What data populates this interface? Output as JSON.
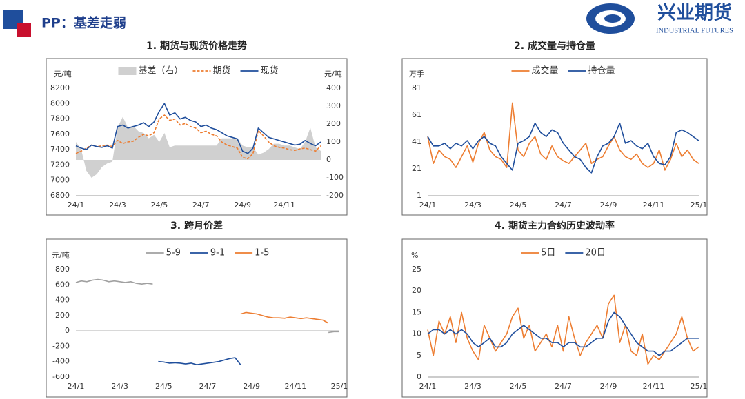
{
  "header": {
    "title": "PP：基差走弱",
    "logo_name": "兴业期货",
    "logo_subtitle": "INDUSTRIAL FUTURES"
  },
  "chart_data": [
    {
      "type": "line",
      "title": "1. 期货与现货价格走势",
      "y_label": "元/吨",
      "y2_label": "元/吨",
      "legend": "top",
      "grid": false,
      "categories": [
        "24/1",
        null,
        null,
        null,
        null,
        null,
        null,
        null,
        "24/3",
        null,
        null,
        null,
        null,
        null,
        null,
        null,
        "24/5",
        null,
        null,
        null,
        null,
        null,
        null,
        null,
        "24/7",
        null,
        null,
        null,
        null,
        null,
        null,
        null,
        "24/9",
        null,
        null,
        null,
        null,
        null,
        null,
        null,
        "24/11",
        null,
        null,
        null,
        null,
        null,
        null,
        null
      ],
      "ylim": [
        6800,
        8200
      ],
      "yticks": [
        6800,
        7000,
        7200,
        7400,
        7600,
        7800,
        8000,
        8200
      ],
      "y2lim": [
        -200,
        400
      ],
      "y2ticks": [
        -200,
        -100,
        0,
        100,
        200,
        300,
        400
      ],
      "series": [
        {
          "name": "基差（右）",
          "kind": "area",
          "axis": "y2",
          "color": "#d0d0d0",
          "values": [
            100,
            60,
            -60,
            -100,
            -80,
            -40,
            -20,
            -10,
            180,
            240,
            180,
            190,
            160,
            150,
            120,
            140,
            100,
            150,
            70,
            80,
            80,
            80,
            80,
            80,
            80,
            80,
            80,
            80,
            120,
            120,
            120,
            120,
            80,
            70,
            70,
            30,
            40,
            60,
            90,
            90,
            80,
            80,
            70,
            60,
            100,
            180,
            70,
            50
          ]
        },
        {
          "name": "期货",
          "kind": "line",
          "dashed": true,
          "color": "#ed7d31",
          "values": [
            7350,
            7380,
            7420,
            7460,
            7440,
            7450,
            7460,
            7440,
            7520,
            7480,
            7500,
            7510,
            7560,
            7600,
            7580,
            7620,
            7800,
            7850,
            7780,
            7800,
            7720,
            7740,
            7700,
            7680,
            7620,
            7640,
            7600,
            7580,
            7500,
            7460,
            7440,
            7420,
            7300,
            7280,
            7350,
            7650,
            7580,
            7500,
            7450,
            7430,
            7420,
            7400,
            7390,
            7410,
            7420,
            7400,
            7380,
            7450
          ]
        },
        {
          "name": "现货",
          "kind": "line",
          "color": "#1f4e9c",
          "values": [
            7450,
            7420,
            7400,
            7460,
            7440,
            7430,
            7450,
            7420,
            7700,
            7720,
            7680,
            7700,
            7720,
            7750,
            7700,
            7760,
            7900,
            8000,
            7850,
            7880,
            7800,
            7820,
            7780,
            7760,
            7700,
            7720,
            7680,
            7660,
            7620,
            7580,
            7560,
            7540,
            7380,
            7350,
            7420,
            7680,
            7620,
            7560,
            7540,
            7520,
            7500,
            7480,
            7460,
            7470,
            7520,
            7480,
            7450,
            7500
          ]
        }
      ]
    },
    {
      "type": "line",
      "title": "2. 成交量与持仓量",
      "y_label": "万手",
      "legend": "top",
      "grid": false,
      "categories": [
        "24/1",
        null,
        null,
        null,
        null,
        null,
        null,
        null,
        "24/3",
        null,
        null,
        null,
        null,
        null,
        null,
        null,
        "24/5",
        null,
        null,
        null,
        null,
        null,
        null,
        null,
        "24/7",
        null,
        null,
        null,
        null,
        null,
        null,
        null,
        "24/9",
        null,
        null,
        null,
        null,
        null,
        null,
        null,
        "24/11",
        null,
        null,
        null,
        null,
        null,
        null,
        null,
        "25/1"
      ],
      "ylim": [
        1,
        81
      ],
      "yticks": [
        1,
        21,
        41,
        61,
        81
      ],
      "series": [
        {
          "name": "成交量",
          "kind": "line",
          "color": "#ed7d31",
          "values": [
            45,
            25,
            35,
            30,
            28,
            22,
            30,
            38,
            26,
            40,
            48,
            35,
            30,
            28,
            22,
            70,
            35,
            30,
            40,
            45,
            32,
            28,
            38,
            30,
            27,
            25,
            30,
            35,
            40,
            25,
            28,
            30,
            38,
            45,
            35,
            30,
            28,
            32,
            25,
            22,
            25,
            35,
            20,
            28,
            40,
            30,
            35,
            28,
            25
          ]
        },
        {
          "name": "持仓量",
          "kind": "line",
          "color": "#1f4e9c",
          "values": [
            45,
            38,
            38,
            40,
            36,
            40,
            38,
            42,
            36,
            42,
            45,
            40,
            38,
            30,
            25,
            20,
            40,
            42,
            45,
            55,
            48,
            45,
            50,
            48,
            40,
            35,
            30,
            28,
            22,
            18,
            30,
            38,
            40,
            45,
            55,
            40,
            42,
            38,
            36,
            40,
            30,
            25,
            24,
            30,
            48,
            50,
            48,
            45,
            42
          ]
        }
      ]
    },
    {
      "type": "line",
      "title": "3. 跨月价差",
      "y_label": "元/吨",
      "legend": "top",
      "grid": false,
      "categories": [
        "24/1",
        null,
        null,
        null,
        null,
        null,
        null,
        null,
        "24/3",
        null,
        null,
        null,
        null,
        null,
        null,
        null,
        "24/5",
        null,
        null,
        null,
        null,
        null,
        null,
        null,
        "24/7",
        null,
        null,
        null,
        null,
        null,
        null,
        null,
        "24/9",
        null,
        null,
        null,
        null,
        null,
        null,
        null,
        "24/11",
        null,
        null,
        null,
        null,
        null,
        null,
        null,
        "25/1"
      ],
      "ylim": [
        -600,
        800
      ],
      "yticks": [
        -600,
        -400,
        -200,
        0,
        200,
        400,
        600,
        800
      ],
      "series": [
        {
          "name": "5-9",
          "kind": "line",
          "color": "#a0a0a0",
          "values": [
            630,
            650,
            640,
            660,
            670,
            660,
            640,
            650,
            640,
            630,
            640,
            620,
            610,
            620,
            610,
            null,
            null,
            null,
            null,
            null,
            null,
            null,
            null,
            null,
            null,
            null,
            null,
            null,
            null,
            null,
            null,
            null,
            null,
            null,
            null,
            null,
            null,
            null,
            null,
            null,
            null,
            null,
            null,
            null,
            null,
            null,
            -20,
            -10,
            -10
          ]
        },
        {
          "name": "9-1",
          "kind": "line",
          "color": "#1f4e9c",
          "values": [
            null,
            null,
            null,
            null,
            null,
            null,
            null,
            null,
            null,
            null,
            null,
            null,
            null,
            null,
            null,
            -400,
            -405,
            -420,
            -415,
            -420,
            -430,
            -420,
            -440,
            -430,
            -420,
            -410,
            -400,
            -380,
            -360,
            -350,
            -440,
            null,
            null,
            null,
            null,
            null,
            null,
            null,
            null,
            null,
            null,
            null,
            null,
            null,
            null,
            null,
            null,
            null,
            null
          ]
        },
        {
          "name": "1-5",
          "kind": "line",
          "color": "#ed7d31",
          "values": [
            null,
            null,
            null,
            null,
            null,
            null,
            null,
            null,
            null,
            null,
            null,
            null,
            null,
            null,
            null,
            null,
            null,
            null,
            null,
            null,
            null,
            null,
            null,
            null,
            null,
            null,
            null,
            null,
            null,
            null,
            220,
            240,
            230,
            220,
            200,
            180,
            170,
            170,
            165,
            180,
            170,
            160,
            170,
            160,
            150,
            140,
            100,
            null,
            null
          ]
        }
      ]
    },
    {
      "type": "line",
      "title": "4. 期货主力合约历史波动率",
      "y_label": "%",
      "legend": "top",
      "grid": false,
      "categories": [
        "24/1",
        null,
        null,
        null,
        null,
        null,
        null,
        null,
        "24/3",
        null,
        null,
        null,
        null,
        null,
        null,
        null,
        "24/5",
        null,
        null,
        null,
        null,
        null,
        null,
        null,
        "24/7",
        null,
        null,
        null,
        null,
        null,
        null,
        null,
        "24/9",
        null,
        null,
        null,
        null,
        null,
        null,
        null,
        "24/11",
        null,
        null,
        null,
        null,
        null,
        null,
        null,
        "25/1"
      ],
      "ylim": [
        0,
        25
      ],
      "yticks": [
        0,
        5,
        10,
        15,
        20,
        25
      ],
      "series": [
        {
          "name": "5日",
          "kind": "line",
          "color": "#ed7d31",
          "values": [
            11,
            5,
            13,
            10,
            14,
            8,
            15,
            9,
            6,
            4,
            12,
            9,
            6,
            8,
            10,
            14,
            16,
            9,
            12,
            6,
            8,
            10,
            7,
            12,
            6,
            14,
            9,
            5,
            8,
            10,
            12,
            9,
            17,
            19,
            8,
            12,
            6,
            5,
            10,
            3,
            5,
            4,
            6,
            8,
            10,
            14,
            9,
            6,
            7
          ]
        },
        {
          "name": "20日",
          "kind": "line",
          "color": "#1f4e9c",
          "values": [
            10,
            11,
            11,
            10,
            11,
            10,
            11,
            10,
            8,
            7,
            8,
            9,
            7,
            7,
            8,
            10,
            11,
            12,
            11,
            10,
            9,
            9,
            8,
            8,
            7,
            8,
            8,
            7,
            7,
            8,
            9,
            9,
            13,
            15,
            14,
            12,
            10,
            8,
            7,
            6,
            6,
            5,
            6,
            6,
            7,
            8,
            9,
            9,
            9
          ]
        }
      ]
    }
  ]
}
